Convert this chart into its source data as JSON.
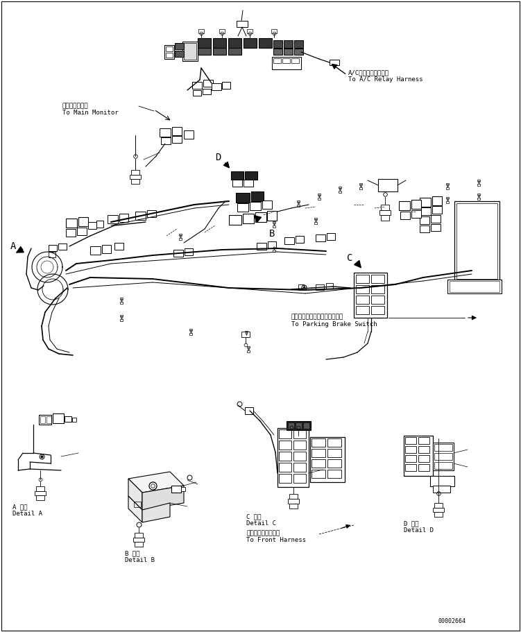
{
  "background_color": "#ffffff",
  "line_color": "#000000",
  "fig_width": 7.51,
  "fig_height": 9.11,
  "dpi": 100,
  "part_number": "00002664",
  "labels": {
    "main_monitor_ja": "メインモニタへ",
    "main_monitor_en": "To Main Monitor",
    "ac_relay_ja": "A/Cリレーハーネスへ",
    "ac_relay_en": "To A/C Relay Harness",
    "parking_brake_ja": "パーキングブレーキスイッチへ",
    "parking_brake_en": "To Parking Brake Switch",
    "front_harness_ja": "フロントハーネスへ",
    "front_harness_en": "To Front Harness",
    "detail_a_ja": "A 詳細",
    "detail_a_en": "Detail A",
    "detail_b_ja": "B 詳細",
    "detail_b_en": "Detail B",
    "detail_c_ja": "C 詳細",
    "detail_c_en": "Detail C",
    "detail_d_ja": "D 詳細",
    "detail_d_en": "Detail D",
    "label_a": "A",
    "label_b": "B",
    "label_c": "C",
    "label_d": "D"
  },
  "font_sizes": {
    "small": 6.5,
    "medium": 7.5,
    "large": 10,
    "part_num": 6
  }
}
